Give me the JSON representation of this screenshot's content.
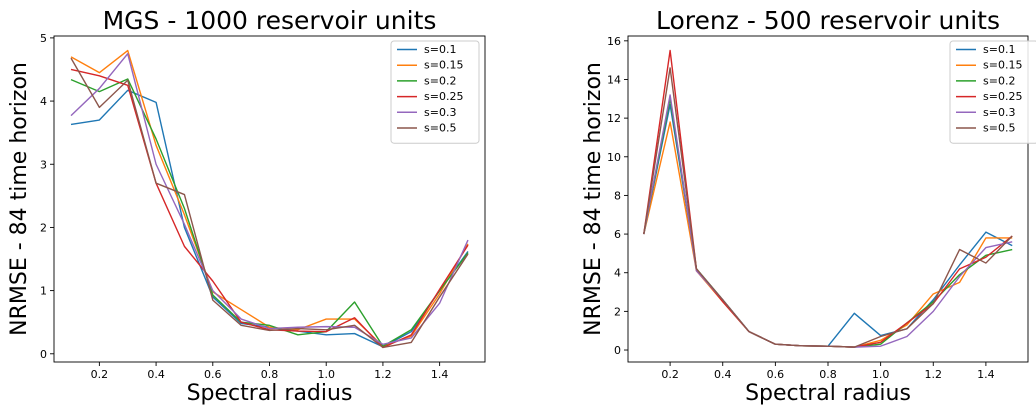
{
  "chart_data": [
    {
      "type": "line",
      "title": "MGS - 1000 reservoir units",
      "xlabel": "Spectral radius",
      "ylabel": "NRMSE - 84 time horizon",
      "xlim": [
        0.04,
        1.56
      ],
      "ylim": [
        -0.13,
        5.03
      ],
      "xticks": [
        0.2,
        0.4,
        0.6,
        0.8,
        1.0,
        1.2,
        1.4
      ],
      "xtick_labels": [
        "0.2",
        "0.4",
        "0.6",
        "0.8",
        "1.0",
        "1.2",
        "1.4"
      ],
      "yticks": [
        0,
        1,
        2,
        3,
        4,
        5
      ],
      "ytick_labels": [
        "0",
        "1",
        "2",
        "3",
        "4",
        "5"
      ],
      "legend_position": "top-right",
      "x": [
        0.1,
        0.2,
        0.3,
        0.4,
        0.5,
        0.6,
        0.7,
        0.8,
        0.9,
        1.0,
        1.1,
        1.2,
        1.3,
        1.4,
        1.5
      ],
      "series": [
        {
          "name": "s=0.1",
          "color": "#1f77b4",
          "values": [
            3.63,
            3.7,
            4.17,
            3.98,
            2.0,
            0.9,
            0.48,
            0.42,
            0.36,
            0.3,
            0.32,
            0.11,
            0.35,
            1.0,
            1.62
          ]
        },
        {
          "name": "s=0.15",
          "color": "#ff7f0e",
          "values": [
            4.7,
            4.45,
            4.8,
            3.3,
            2.2,
            0.98,
            0.7,
            0.42,
            0.38,
            0.55,
            0.55,
            0.12,
            0.28,
            0.95,
            1.74
          ]
        },
        {
          "name": "s=0.2",
          "color": "#2ca02c",
          "values": [
            4.34,
            4.15,
            4.35,
            3.4,
            2.3,
            0.93,
            0.5,
            0.45,
            0.3,
            0.35,
            0.82,
            0.12,
            0.38,
            1.0,
            1.6
          ]
        },
        {
          "name": "s=0.25",
          "color": "#d62728",
          "values": [
            4.5,
            4.4,
            4.25,
            2.7,
            1.7,
            1.15,
            0.5,
            0.38,
            0.36,
            0.35,
            0.57,
            0.1,
            0.3,
            1.02,
            1.72
          ]
        },
        {
          "name": "s=0.3",
          "color": "#9467bd",
          "values": [
            3.77,
            4.2,
            4.75,
            3.0,
            2.05,
            1.0,
            0.55,
            0.4,
            0.42,
            0.43,
            0.42,
            0.15,
            0.25,
            0.8,
            1.8
          ]
        },
        {
          "name": "s=0.5",
          "color": "#8c564b",
          "values": [
            4.68,
            3.9,
            4.33,
            2.7,
            2.52,
            0.85,
            0.45,
            0.37,
            0.4,
            0.38,
            0.45,
            0.1,
            0.18,
            0.9,
            1.58
          ]
        }
      ]
    },
    {
      "type": "line",
      "title": "Lorenz - 500 reservoir units",
      "xlabel": "Spectral radius",
      "ylabel": "NRMSE - 84 time horizon",
      "xlim": [
        0.04,
        1.56
      ],
      "ylim": [
        -0.62,
        16.25
      ],
      "xticks": [
        0.2,
        0.4,
        0.6,
        0.8,
        1.0,
        1.2,
        1.4
      ],
      "xtick_labels": [
        "0.2",
        "0.4",
        "0.6",
        "0.8",
        "1.0",
        "1.2",
        "1.4"
      ],
      "yticks": [
        0,
        2,
        4,
        6,
        8,
        10,
        12,
        14,
        16
      ],
      "ytick_labels": [
        "0",
        "2",
        "4",
        "6",
        "8",
        "10",
        "12",
        "14",
        "16"
      ],
      "legend_position": "top-right",
      "x": [
        0.1,
        0.2,
        0.3,
        0.4,
        0.5,
        0.6,
        0.7,
        0.8,
        0.9,
        1.0,
        1.1,
        1.2,
        1.3,
        1.4,
        1.5
      ],
      "series": [
        {
          "name": "s=0.1",
          "color": "#1f77b4",
          "values": [
            6.0,
            12.7,
            4.2,
            2.6,
            0.95,
            0.3,
            0.22,
            0.2,
            1.9,
            0.75,
            1.1,
            2.6,
            4.4,
            6.1,
            5.4
          ]
        },
        {
          "name": "s=0.15",
          "color": "#ff7f0e",
          "values": [
            6.0,
            11.8,
            4.1,
            2.5,
            0.95,
            0.3,
            0.22,
            0.2,
            0.15,
            0.5,
            1.3,
            2.9,
            3.5,
            5.8,
            5.8
          ]
        },
        {
          "name": "s=0.2",
          "color": "#2ca02c",
          "values": [
            6.0,
            13.0,
            4.2,
            2.6,
            0.95,
            0.3,
            0.22,
            0.2,
            0.15,
            0.3,
            1.4,
            2.5,
            3.9,
            4.9,
            5.2
          ]
        },
        {
          "name": "s=0.25",
          "color": "#d62728",
          "values": [
            6.0,
            15.5,
            4.2,
            2.5,
            0.95,
            0.3,
            0.22,
            0.2,
            0.15,
            0.4,
            1.4,
            2.4,
            4.2,
            4.8,
            5.9
          ]
        },
        {
          "name": "s=0.3",
          "color": "#9467bd",
          "values": [
            6.0,
            13.2,
            4.1,
            2.6,
            0.95,
            0.3,
            0.22,
            0.2,
            0.15,
            0.2,
            0.7,
            2.0,
            3.8,
            5.3,
            5.6
          ]
        },
        {
          "name": "s=0.5",
          "color": "#8c564b",
          "values": [
            6.0,
            14.6,
            4.2,
            2.6,
            0.95,
            0.3,
            0.22,
            0.2,
            0.15,
            0.7,
            1.1,
            2.4,
            5.2,
            4.5,
            5.9
          ]
        }
      ]
    }
  ]
}
